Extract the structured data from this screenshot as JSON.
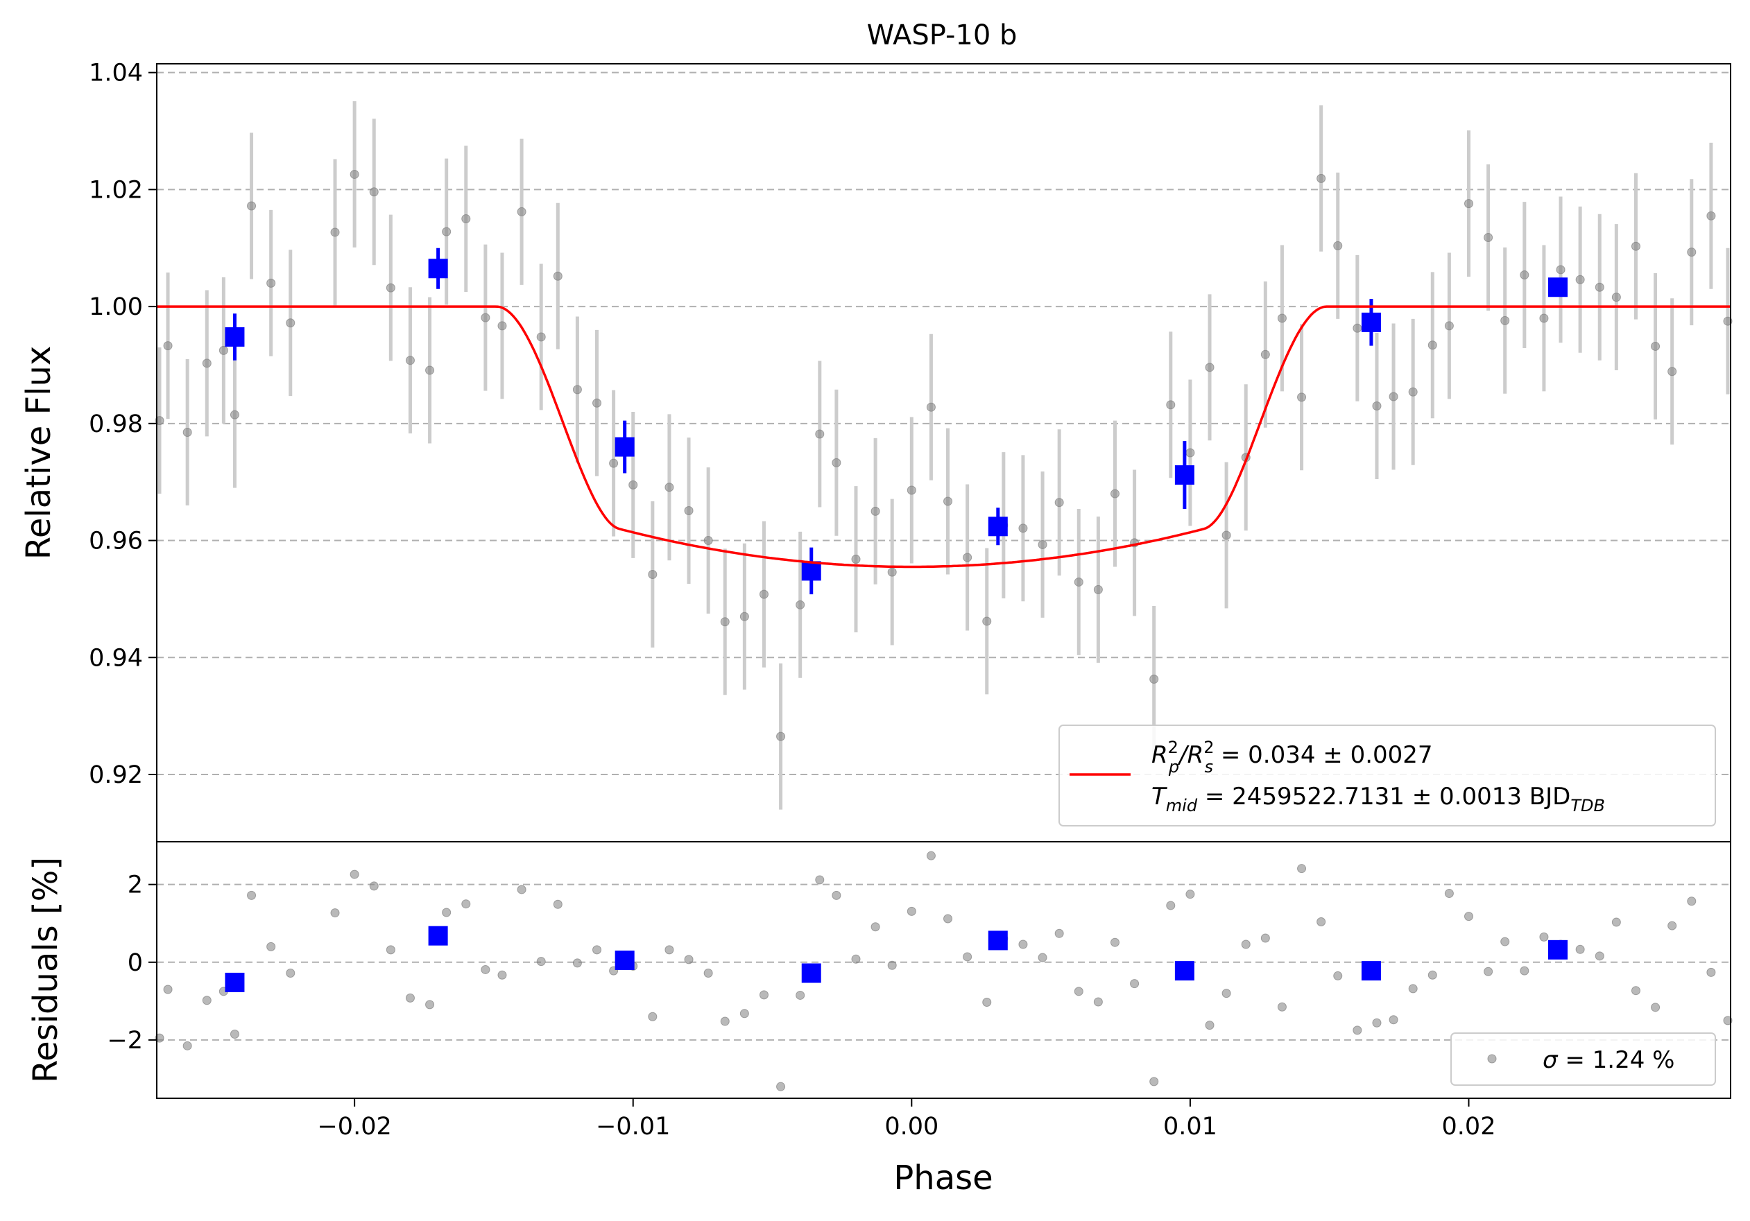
{
  "chart_data": [
    {
      "type": "scatter",
      "title": "WASP-10 b",
      "xlabel": "",
      "ylabel": "Relative Flux",
      "xlim": [
        -0.0271,
        0.0294
      ],
      "ylim": [
        0.9085,
        1.0415
      ],
      "xticks": [
        -0.02,
        -0.01,
        0.0,
        0.01,
        0.02
      ],
      "xtick_labels": [
        "−0.02",
        "−0.01",
        "0.00",
        "0.01",
        "0.02"
      ],
      "yticks": [
        0.92,
        0.94,
        0.96,
        0.98,
        1.0,
        1.02,
        1.04
      ],
      "ytick_labels": [
        "0.92",
        "0.94",
        "0.96",
        "0.98",
        "1.00",
        "1.02",
        "1.04"
      ],
      "grid": "y-dashed",
      "legend_position": "lower-right",
      "colors": {
        "raw": "#808080",
        "errorbar": "#cccccc",
        "binned": "#0000ff",
        "model": "#ff0000",
        "grid": "#b0b0b0"
      },
      "legend": {
        "line1": {
          "main": "R",
          "sup1": "2",
          "sub1": "p",
          "slash": "/R",
          "sup2": "2",
          "sub2": "s",
          "rest": " = 0.034 ± 0.0027"
        },
        "line2": {
          "main": "T",
          "sub": "mid",
          "rest": " = 2459522.7131 ± 0.0013 BJD",
          "sub2": "TDB"
        }
      },
      "model": {
        "name": "transit model",
        "depth": 0.0445,
        "contact_outer": 0.0149,
        "contact_inner": 0.0105,
        "x": [
          -0.0271,
          -0.015,
          -0.014,
          -0.013,
          -0.012,
          -0.011,
          -0.01,
          -0.009,
          -0.008,
          -0.007,
          -0.006,
          -0.005,
          -0.004,
          -0.003,
          -0.002,
          -0.001,
          0.0,
          0.001,
          0.002,
          0.003,
          0.004,
          0.005,
          0.006,
          0.007,
          0.008,
          0.009,
          0.01,
          0.011,
          0.012,
          0.013,
          0.014,
          0.015,
          0.0294
        ],
        "y": [
          1.0,
          1.0,
          0.9955,
          0.989,
          0.981,
          0.9735,
          0.969,
          0.9655,
          0.9625,
          0.9602,
          0.9586,
          0.9573,
          0.9564,
          0.9559,
          0.9556,
          0.9555,
          0.9555,
          0.9556,
          0.9559,
          0.9565,
          0.9575,
          0.9588,
          0.9605,
          0.9628,
          0.9655,
          0.969,
          0.9735,
          0.981,
          0.989,
          0.9955,
          0.9995,
          1.0,
          1.0
        ]
      },
      "raw": {
        "x": [
          -0.027,
          -0.0267,
          -0.026,
          -0.0253,
          -0.0247,
          -0.0243,
          -0.0237,
          -0.023,
          -0.0223,
          -0.0207,
          -0.02,
          -0.0193,
          -0.0187,
          -0.018,
          -0.0173,
          -0.0167,
          -0.016,
          -0.0153,
          -0.0147,
          -0.014,
          -0.0133,
          -0.0127,
          -0.012,
          -0.0113,
          -0.0107,
          -0.01,
          -0.0093,
          -0.0087,
          -0.008,
          -0.0073,
          -0.0067,
          -0.006,
          -0.0053,
          -0.0047,
          -0.004,
          -0.0033,
          -0.0027,
          -0.002,
          -0.0013,
          -0.0007,
          0.0,
          0.0007,
          0.0013,
          0.002,
          0.0027,
          0.0033,
          0.004,
          0.0047,
          0.0053,
          0.006,
          0.0067,
          0.0073,
          0.008,
          0.0087,
          0.0093,
          0.01,
          0.0107,
          0.0113,
          0.012,
          0.0127,
          0.0133,
          0.014,
          0.0147,
          0.0153,
          0.016,
          0.0167,
          0.0173,
          0.018,
          0.0187,
          0.0193,
          0.02,
          0.0207,
          0.0213,
          0.022,
          0.0227,
          0.0233,
          0.024,
          0.0247,
          0.0253,
          0.026,
          0.0267,
          0.0273,
          0.028,
          0.0287,
          0.0293
        ],
        "y": [
          0.9805,
          0.9933,
          0.9785,
          0.9903,
          0.9925,
          0.9815,
          1.0172,
          1.004,
          0.9972,
          1.0127,
          1.0226,
          1.0196,
          1.0032,
          0.9908,
          0.9891,
          1.0128,
          1.015,
          0.9981,
          0.9967,
          1.0162,
          0.9948,
          1.0052,
          0.9858,
          0.9835,
          0.9732,
          0.9695,
          0.9542,
          0.9691,
          0.9651,
          0.96,
          0.9461,
          0.947,
          0.9508,
          0.9265,
          0.949,
          0.9782,
          0.9733,
          0.9568,
          0.965,
          0.9546,
          0.9686,
          0.9828,
          0.9667,
          0.9571,
          0.9462,
          0.9626,
          0.9621,
          0.9593,
          0.9665,
          0.9529,
          0.9516,
          0.968,
          0.9596,
          0.9363,
          0.9832,
          0.975,
          0.9896,
          0.9609,
          0.9742,
          0.9918,
          0.998,
          0.9845,
          1.0219,
          1.0104,
          0.9963,
          0.983,
          0.9846,
          0.9854,
          0.9934,
          0.9967,
          1.0176,
          1.0118,
          0.9976,
          1.0054,
          0.998,
          1.0063,
          1.0046,
          1.0033,
          1.0016,
          1.0103,
          0.9932,
          0.9889,
          1.0093,
          1.0155,
          0.9975
        ],
        "yerr": 0.0125
      },
      "binned": {
        "x": [
          -0.0243,
          -0.017,
          -0.0103,
          -0.0036,
          0.0031,
          0.0098,
          0.0165,
          0.0232
        ],
        "y": [
          0.9948,
          1.0065,
          0.976,
          0.9548,
          0.9624,
          0.9712,
          0.9973,
          1.0033
        ],
        "yerr": [
          0.004,
          0.0035,
          0.0045,
          0.004,
          0.0032,
          0.0058,
          0.004,
          0.0015
        ]
      }
    },
    {
      "type": "scatter",
      "title": "",
      "xlabel": "Phase",
      "ylabel": "Residuals [%]",
      "xlim": [
        -0.0271,
        0.0294
      ],
      "ylim": [
        -3.5,
        3.1
      ],
      "yticks": [
        -2,
        0,
        2
      ],
      "ytick_labels": [
        "−2",
        "0",
        "2"
      ],
      "grid": "y-dashed",
      "legend_position": "lower-right",
      "legend": {
        "sigma_symbol": "σ",
        "sigma_text": " = 1.24 %"
      },
      "raw": {
        "x": [
          -0.027,
          -0.0267,
          -0.026,
          -0.0253,
          -0.0247,
          -0.0243,
          -0.0237,
          -0.023,
          -0.0223,
          -0.0207,
          -0.02,
          -0.0193,
          -0.0187,
          -0.018,
          -0.0173,
          -0.0167,
          -0.016,
          -0.0153,
          -0.0147,
          -0.014,
          -0.0133,
          -0.0127,
          -0.012,
          -0.0113,
          -0.0107,
          -0.01,
          -0.0093,
          -0.0087,
          -0.008,
          -0.0073,
          -0.0067,
          -0.006,
          -0.0053,
          -0.0047,
          -0.004,
          -0.0033,
          -0.0027,
          -0.002,
          -0.0013,
          -0.0007,
          0.0,
          0.0007,
          0.0013,
          0.002,
          0.0027,
          0.0033,
          0.004,
          0.0047,
          0.0053,
          0.006,
          0.0067,
          0.0073,
          0.008,
          0.0087,
          0.0093,
          0.01,
          0.0107,
          0.0113,
          0.012,
          0.0127,
          0.0133,
          0.014,
          0.0147,
          0.0153,
          0.016,
          0.0167,
          0.0173,
          0.018,
          0.0187,
          0.0193,
          0.02,
          0.0207,
          0.0213,
          0.022,
          0.0227,
          0.0233,
          0.024,
          0.0247,
          0.0253,
          0.026,
          0.0267,
          0.0273,
          0.028,
          0.0287,
          0.0293
        ],
        "y": [
          -1.95,
          -0.7,
          -2.15,
          -0.98,
          -0.75,
          -1.85,
          1.72,
          0.4,
          -0.28,
          1.27,
          2.26,
          1.96,
          0.32,
          -0.92,
          -1.09,
          1.28,
          1.5,
          -0.19,
          -0.33,
          1.87,
          0.02,
          1.49,
          -0.02,
          0.32,
          -0.22,
          -0.1,
          -1.4,
          0.32,
          0.07,
          -0.28,
          -1.52,
          -1.32,
          -0.84,
          -3.2,
          -0.85,
          2.12,
          1.72,
          0.08,
          0.91,
          -0.08,
          1.31,
          2.74,
          1.12,
          0.14,
          -1.03,
          0.61,
          0.46,
          0.12,
          0.74,
          -0.75,
          -1.02,
          0.51,
          -0.55,
          -3.07,
          1.46,
          1.75,
          -1.62,
          -0.8,
          0.46,
          0.62,
          -1.15,
          2.41,
          1.04,
          -0.35,
          -1.75,
          -1.56,
          -1.48,
          -0.68,
          -0.33,
          1.77,
          1.18,
          -0.24,
          0.53,
          -0.22,
          0.65,
          0.46,
          0.33,
          0.16,
          1.03,
          -0.73,
          -1.16,
          0.94,
          1.57,
          -0.26,
          -1.5
        ]
      },
      "binned": {
        "x": [
          -0.0243,
          -0.017,
          -0.0103,
          -0.0036,
          0.0031,
          0.0098,
          0.0165,
          0.0232
        ],
        "y": [
          -0.52,
          0.68,
          0.05,
          -0.28,
          0.56,
          -0.22,
          -0.22,
          0.32
        ]
      }
    }
  ]
}
